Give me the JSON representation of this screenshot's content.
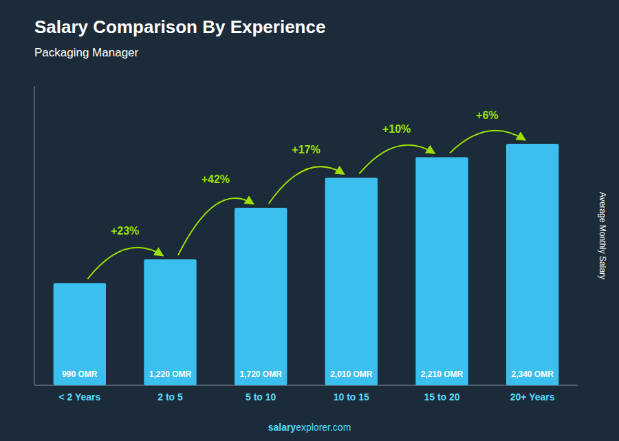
{
  "chart_data": {
    "type": "bar",
    "title": "Salary Comparison By Experience",
    "subtitle": "Packaging Manager",
    "ylabel": "Average Monthly Salary",
    "categories": [
      "< 2 Years",
      "2 to 5",
      "5 to 10",
      "10 to 15",
      "15 to 20",
      "20+ Years"
    ],
    "values": [
      990,
      1220,
      1720,
      2010,
      2210,
      2340
    ],
    "value_labels": [
      "990 OMR",
      "1,220 OMR",
      "1,720 OMR",
      "2,010 OMR",
      "2,210 OMR",
      "2,340 OMR"
    ],
    "data_labels": true,
    "annotations": [
      "+23%",
      "+42%",
      "+17%",
      "+10%",
      "+6%"
    ],
    "footer": [
      "salary",
      "explorer.com"
    ],
    "color": "#3bbfef",
    "ylim": [
      0,
      2900
    ],
    "tick_labels": "x",
    "grid": false
  }
}
